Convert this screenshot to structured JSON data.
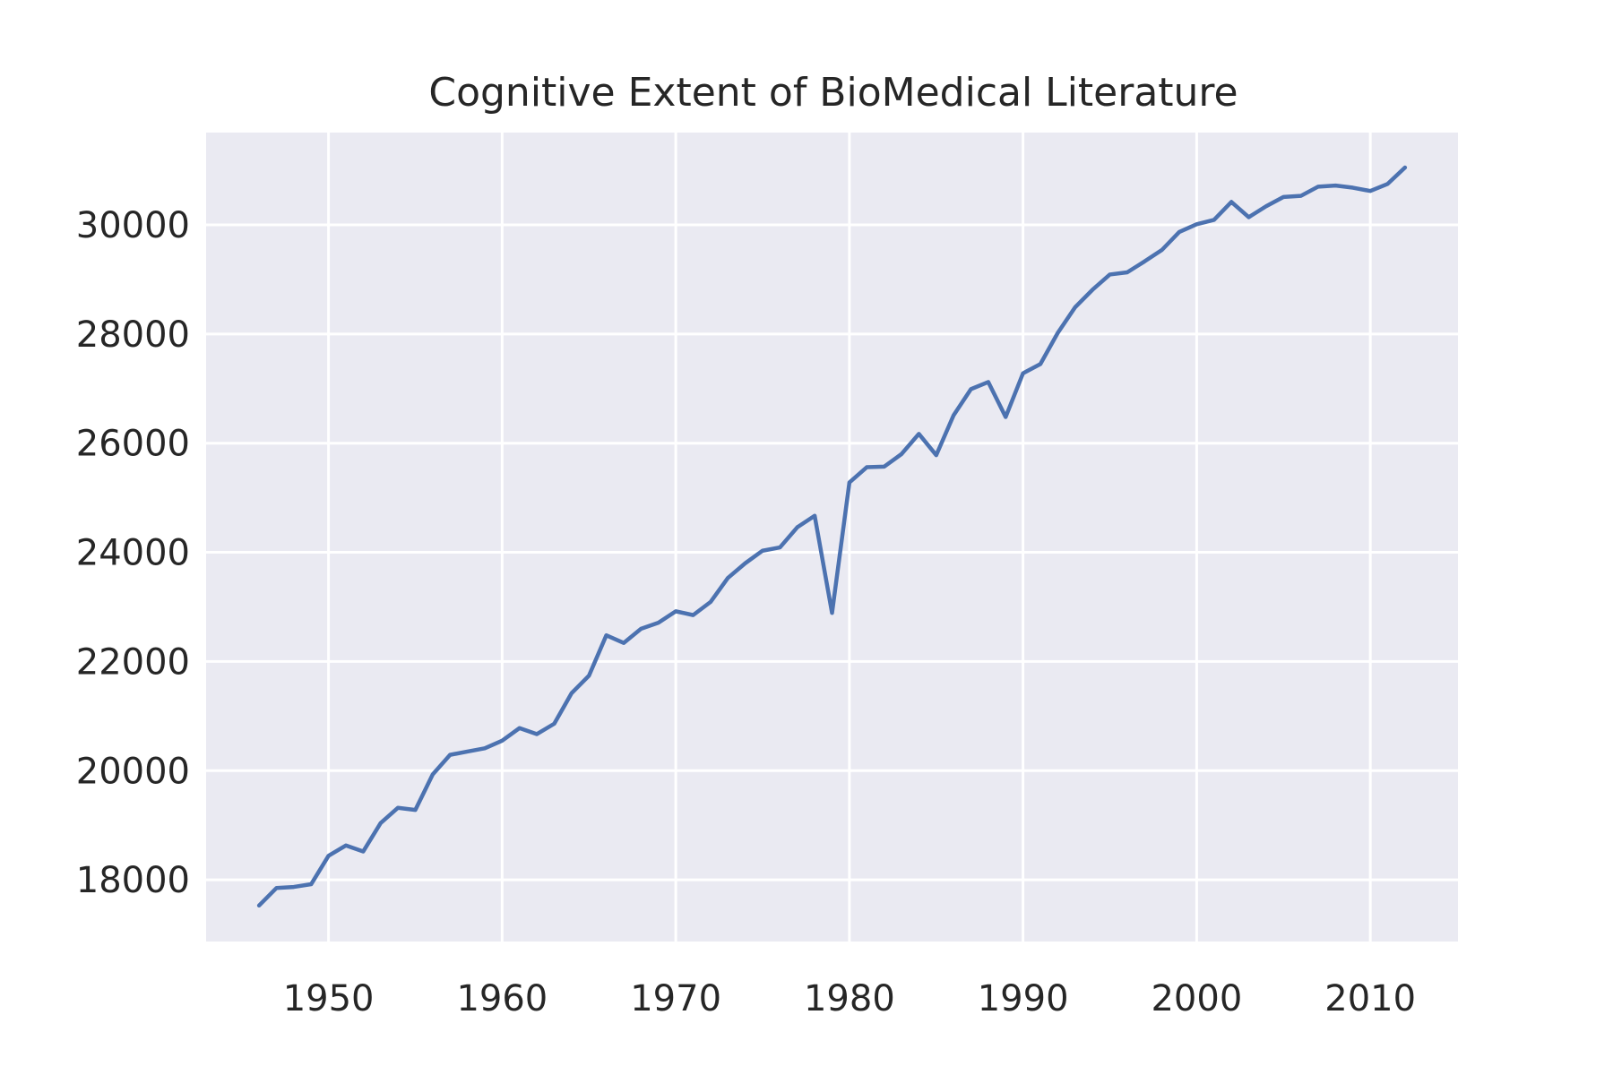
{
  "chart_data": {
    "type": "line",
    "title": "Cognitive Extent of BioMedical Literature",
    "xlabel": "",
    "ylabel": "",
    "xlim": [
      1942.95,
      2015.05
    ],
    "ylim": [
      16870,
      31690
    ],
    "x_ticks": [
      1950,
      1960,
      1970,
      1980,
      1990,
      2000,
      2010
    ],
    "y_ticks": [
      18000,
      20000,
      22000,
      24000,
      26000,
      28000,
      30000
    ],
    "grid": true,
    "legend": "none",
    "colors": {
      "background": "#eaeaf2",
      "grid": "#ffffff",
      "line": "#4c72b0",
      "text": "#262626"
    },
    "series": [
      {
        "color": "#4c72b0",
        "x": [
          1946,
          1947,
          1948,
          1949,
          1950,
          1951,
          1952,
          1953,
          1954,
          1955,
          1956,
          1957,
          1958,
          1959,
          1960,
          1961,
          1962,
          1963,
          1964,
          1965,
          1966,
          1967,
          1968,
          1969,
          1970,
          1971,
          1972,
          1973,
          1974,
          1975,
          1976,
          1977,
          1978,
          1979,
          1980,
          1981,
          1982,
          1983,
          1984,
          1985,
          1986,
          1987,
          1988,
          1989,
          1990,
          1991,
          1992,
          1993,
          1994,
          1995,
          1996,
          1997,
          1998,
          1999,
          2000,
          2001,
          2002,
          2003,
          2004,
          2005,
          2006,
          2007,
          2008,
          2009,
          2010,
          2011,
          2012
        ],
        "values": [
          17530,
          17850,
          17870,
          17920,
          18440,
          18630,
          18520,
          19040,
          19320,
          19280,
          19930,
          20290,
          20350,
          20410,
          20550,
          20780,
          20670,
          20860,
          21420,
          21740,
          22480,
          22340,
          22600,
          22710,
          22920,
          22850,
          23090,
          23530,
          23800,
          24030,
          24090,
          24460,
          24670,
          22890,
          25280,
          25560,
          25570,
          25800,
          26170,
          25780,
          26510,
          26990,
          27120,
          26480,
          27280,
          27450,
          28020,
          28490,
          28810,
          29090,
          29130,
          29330,
          29540,
          29870,
          30010,
          30090,
          30420,
          30140,
          30340,
          30510,
          30530,
          30700,
          30720,
          30680,
          30620,
          30750,
          31050
        ]
      }
    ]
  }
}
